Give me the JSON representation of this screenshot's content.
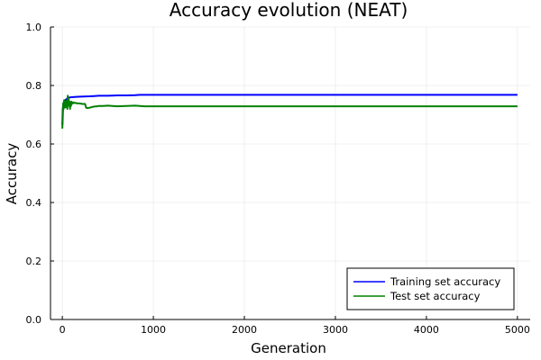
{
  "chart_data": {
    "type": "line",
    "title": "Accuracy evolution (NEAT)",
    "xlabel": "Generation",
    "ylabel": "Accuracy",
    "xlim": [
      -130,
      5140
    ],
    "ylim": [
      0,
      1.0
    ],
    "xticks": [
      0,
      1000,
      2000,
      3000,
      4000,
      5000
    ],
    "yticks": [
      0.0,
      0.2,
      0.4,
      0.6,
      0.8,
      1.0
    ],
    "xtick_labels": [
      "0",
      "1000",
      "2000",
      "3000",
      "4000",
      "5000"
    ],
    "ytick_labels": [
      "0.0",
      "0.2",
      "0.4",
      "0.6",
      "0.8",
      "1.0"
    ],
    "grid": true,
    "legend_position": "bottom-right",
    "series": [
      {
        "name": "Training set accuracy",
        "color": "#0000ff",
        "x": [
          0,
          5,
          10,
          20,
          30,
          40,
          60,
          80,
          100,
          150,
          200,
          300,
          350,
          400,
          500,
          600,
          700,
          800,
          850,
          1000,
          2000,
          3000,
          4000,
          5000
        ],
        "y": [
          0.665,
          0.72,
          0.735,
          0.745,
          0.748,
          0.752,
          0.757,
          0.759,
          0.76,
          0.761,
          0.762,
          0.763,
          0.764,
          0.765,
          0.765,
          0.766,
          0.766,
          0.767,
          0.768,
          0.768,
          0.768,
          0.768,
          0.768,
          0.768
        ]
      },
      {
        "name": "Test set accuracy",
        "color": "#008000",
        "x": [
          0,
          5,
          10,
          15,
          20,
          25,
          30,
          35,
          40,
          45,
          50,
          55,
          60,
          65,
          70,
          75,
          80,
          85,
          90,
          95,
          100,
          110,
          120,
          130,
          140,
          150,
          160,
          180,
          200,
          220,
          250,
          260,
          270,
          280,
          300,
          320,
          350,
          380,
          400,
          450,
          500,
          550,
          600,
          700,
          800,
          850,
          900,
          1000,
          2000,
          3000,
          4000,
          5000
        ],
        "y": [
          0.653,
          0.69,
          0.74,
          0.72,
          0.75,
          0.73,
          0.745,
          0.725,
          0.74,
          0.735,
          0.748,
          0.72,
          0.765,
          0.74,
          0.755,
          0.73,
          0.745,
          0.72,
          0.74,
          0.73,
          0.745,
          0.738,
          0.742,
          0.74,
          0.741,
          0.74,
          0.739,
          0.739,
          0.738,
          0.737,
          0.737,
          0.725,
          0.723,
          0.723,
          0.724,
          0.726,
          0.728,
          0.729,
          0.73,
          0.73,
          0.731,
          0.73,
          0.729,
          0.73,
          0.731,
          0.73,
          0.729,
          0.729,
          0.729,
          0.729,
          0.729,
          0.729
        ]
      }
    ]
  }
}
